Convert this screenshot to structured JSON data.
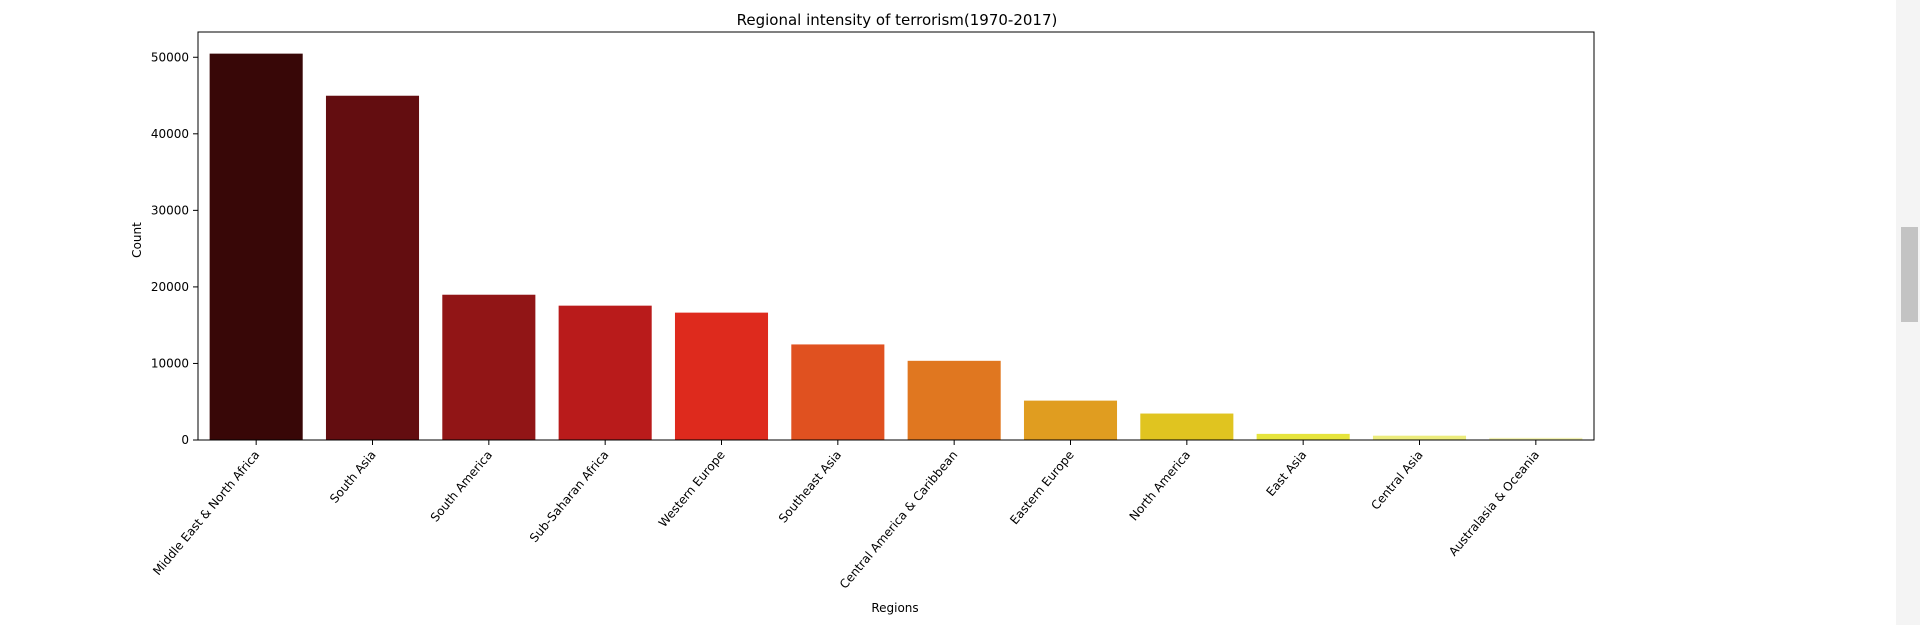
{
  "chart_data": {
    "type": "bar",
    "title": "Regional intensity of terrorism(1970-2017)",
    "xlabel": "Regions",
    "ylabel": "Count",
    "ylim": [
      0,
      53300
    ],
    "yticks": [
      0,
      10000,
      20000,
      30000,
      40000,
      50000
    ],
    "grid": false,
    "categories": [
      "Middle East & North Africa",
      "South Asia",
      "South America",
      "Sub-Saharan Africa",
      "Western Europe",
      "Southeast Asia",
      "Central America & Caribbean",
      "Eastern Europe",
      "North America",
      "East Asia",
      "Central Asia",
      "Australasia & Oceania"
    ],
    "values": [
      50474,
      44974,
      18978,
      17550,
      16639,
      12485,
      10344,
      5144,
      3456,
      802,
      563,
      282
    ],
    "colors": [
      "#380707",
      "#630d10",
      "#911516",
      "#b91b1b",
      "#de2a1d",
      "#e05120",
      "#e07720",
      "#e09d20",
      "#e0c420",
      "#e6e43c",
      "#ecec7c",
      "#f2f2b4"
    ]
  }
}
